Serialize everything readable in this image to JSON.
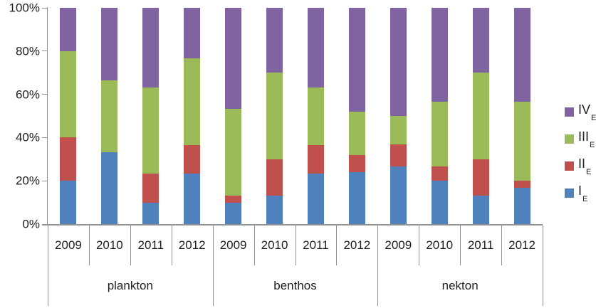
{
  "chart": {
    "background": "#ffffff",
    "axis_color": "#919191",
    "text_color": "#1f1f1f"
  },
  "chart_data": {
    "type": "bar",
    "subtype": "stacked-100-percent",
    "title": "",
    "xlabel": "",
    "ylabel": "",
    "grid": false,
    "legend_position": "right",
    "ylim": [
      0,
      100
    ],
    "y_tick_labels": [
      "0%",
      "20%",
      "40%",
      "60%",
      "80%",
      "100%"
    ],
    "group_labels": [
      "plankton",
      "benthos",
      "nekton"
    ],
    "x_tick_labels": [
      "2009",
      "2010",
      "2011",
      "2012",
      "2009",
      "2010",
      "2011",
      "2012",
      "2009",
      "2010",
      "2011",
      "2012"
    ],
    "categories": [
      "plankton 2009",
      "plankton 2010",
      "plankton 2011",
      "plankton 2012",
      "benthos 2009",
      "benthos 2010",
      "benthos 2011",
      "benthos 2012",
      "nekton 2009",
      "nekton 2010",
      "nekton 2011",
      "nekton 2012"
    ],
    "series": [
      {
        "name": "I_E",
        "label": "I",
        "subscript": "E",
        "color": "#4F81BD",
        "values": [
          20,
          33.3,
          10,
          23.3,
          10,
          13.3,
          23.3,
          24,
          26.7,
          20,
          13.3,
          16.7
        ]
      },
      {
        "name": "II_E",
        "label": "II",
        "subscript": "E",
        "color": "#C0504D",
        "values": [
          20,
          0,
          13.3,
          13.3,
          3.3,
          16.7,
          13.3,
          8,
          10,
          6.7,
          16.7,
          3.3
        ]
      },
      {
        "name": "III_E",
        "label": "III",
        "subscript": "E",
        "color": "#9BBB59",
        "values": [
          40,
          33.3,
          40,
          40,
          40,
          40,
          26.7,
          20,
          13.3,
          30,
          40,
          36.7
        ]
      },
      {
        "name": "IV_E",
        "label": "IV",
        "subscript": "E",
        "color": "#8064A2",
        "values": [
          20,
          33.4,
          36.7,
          23.4,
          46.7,
          30,
          36.7,
          48,
          50,
          43.3,
          30,
          43.3
        ]
      }
    ],
    "legend_order_top_to_bottom": [
      "IV_E",
      "III_E",
      "II_E",
      "I_E"
    ]
  }
}
